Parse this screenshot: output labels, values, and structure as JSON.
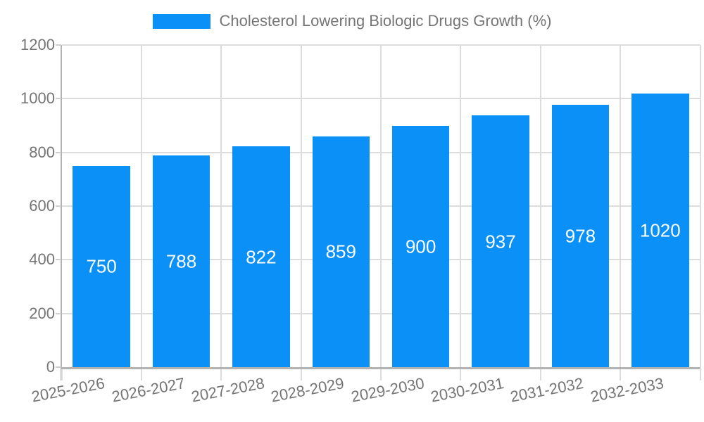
{
  "chart_data": {
    "type": "bar",
    "title": "Cholesterol Lowering Biologic Drugs Growth (%)",
    "legend_position": "top",
    "categories": [
      "2025-2026",
      "2026-2027",
      "2027-2028",
      "2028-2029",
      "2029-2030",
      "2030-2031",
      "2031-2032",
      "2032-2033"
    ],
    "values": [
      750,
      788,
      822,
      859,
      900,
      937,
      978,
      1020
    ],
    "xlabel": "",
    "ylabel": "",
    "ylim": [
      0,
      1200
    ],
    "yticks": [
      0,
      200,
      400,
      600,
      800,
      1000,
      1200
    ],
    "grid": true,
    "bar_color": "#0a90f6",
    "value_label_color": "#ffffff",
    "text_color": "#757575",
    "grid_color": "#dcdcdc",
    "axis_color": "#b3b3b3",
    "background_color": "#ffffff"
  }
}
